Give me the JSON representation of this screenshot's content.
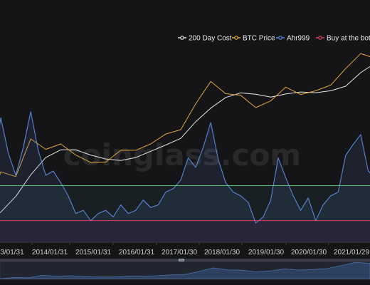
{
  "watermark": "coinglass.com",
  "chart_data": {
    "type": "line",
    "legend_position": "top-right",
    "x_ticks": [
      "3/01/31",
      "2014/01/31",
      "2015/01/31",
      "2016/01/31",
      "2017/01/30",
      "2018/01/30",
      "2019/01/30",
      "2020/01/30",
      "2021/01/29"
    ],
    "x_range": [
      "2012-12",
      "2021-08"
    ],
    "y_scale": "log",
    "series": [
      {
        "name": "200 Day Cost",
        "color": "#e6e6e6",
        "axis": "price",
        "x": [
          "2012-12",
          "2013-04",
          "2013-08",
          "2013-12",
          "2014-04",
          "2014-08",
          "2014-12",
          "2015-04",
          "2015-08",
          "2015-12",
          "2016-04",
          "2016-08",
          "2016-12",
          "2017-04",
          "2017-08",
          "2017-12",
          "2018-04",
          "2018-08",
          "2018-12",
          "2019-04",
          "2019-08",
          "2019-12",
          "2020-04",
          "2020-08",
          "2020-12",
          "2021-04",
          "2021-08"
        ],
        "values": [
          12,
          18,
          40,
          120,
          290,
          430,
          430,
          330,
          270,
          250,
          290,
          400,
          550,
          770,
          1800,
          3600,
          6200,
          7800,
          7300,
          6300,
          7400,
          8200,
          7900,
          8700,
          11000,
          22000,
          36000
        ]
      },
      {
        "name": "BTC Price",
        "color": "#e0a43c",
        "axis": "price",
        "x": [
          "2012-12",
          "2013-04",
          "2013-08",
          "2013-12",
          "2014-04",
          "2014-08",
          "2014-12",
          "2015-04",
          "2015-08",
          "2015-12",
          "2016-04",
          "2016-08",
          "2016-12",
          "2017-04",
          "2017-08",
          "2017-12",
          "2018-04",
          "2018-08",
          "2018-12",
          "2019-04",
          "2019-08",
          "2019-12",
          "2020-04",
          "2020-08",
          "2020-12",
          "2021-04",
          "2021-08"
        ],
        "values": [
          13,
          140,
          110,
          750,
          440,
          580,
          330,
          225,
          230,
          420,
          420,
          580,
          960,
          1200,
          4500,
          14000,
          7500,
          6900,
          3700,
          5200,
          10500,
          7200,
          8700,
          11600,
          27000,
          58000,
          45000
        ]
      },
      {
        "name": "Ahr999",
        "color": "#5b86d9",
        "axis": "ahr",
        "x": [
          "2012-12",
          "2013-02",
          "2013-04",
          "2013-06",
          "2013-08",
          "2013-10",
          "2013-12",
          "2014-02",
          "2014-04",
          "2014-06",
          "2014-08",
          "2014-10",
          "2014-12",
          "2015-02",
          "2015-04",
          "2015-06",
          "2015-08",
          "2015-10",
          "2015-12",
          "2016-02",
          "2016-04",
          "2016-06",
          "2016-08",
          "2016-10",
          "2016-12",
          "2017-02",
          "2017-04",
          "2017-06",
          "2017-08",
          "2017-10",
          "2017-12",
          "2018-02",
          "2018-04",
          "2018-06",
          "2018-08",
          "2018-10",
          "2018-12",
          "2019-02",
          "2019-04",
          "2019-06",
          "2019-08",
          "2019-10",
          "2019-12",
          "2020-02",
          "2020-04",
          "2020-06",
          "2020-08",
          "2020-10",
          "2020-12",
          "2021-02",
          "2021-04",
          "2021-06",
          "2021-08"
        ],
        "values": [
          0.9,
          2.0,
          8.0,
          3.0,
          1.6,
          3.5,
          9.5,
          3.2,
          1.6,
          1.8,
          1.3,
          0.9,
          0.55,
          0.6,
          0.45,
          0.55,
          0.6,
          0.5,
          0.7,
          0.55,
          0.6,
          0.8,
          0.65,
          0.7,
          1.0,
          1.1,
          1.4,
          2.6,
          2.0,
          3.5,
          7.0,
          2.5,
          1.3,
          1.0,
          0.9,
          0.75,
          0.42,
          0.5,
          0.8,
          2.6,
          1.5,
          0.9,
          0.6,
          0.85,
          0.45,
          0.7,
          0.9,
          1.0,
          2.8,
          3.8,
          5.0,
          1.8,
          1.5
        ]
      },
      {
        "name": "Buy at the bottom",
        "color": "#d9455f",
        "axis": "ahr",
        "value": 0.45
      }
    ],
    "reference_lines": [
      {
        "color": "#5dbb73",
        "axis": "ahr",
        "value": 1.2
      },
      {
        "color": "#d9455f",
        "axis": "ahr",
        "value": 0.45
      }
    ],
    "grid": false
  }
}
